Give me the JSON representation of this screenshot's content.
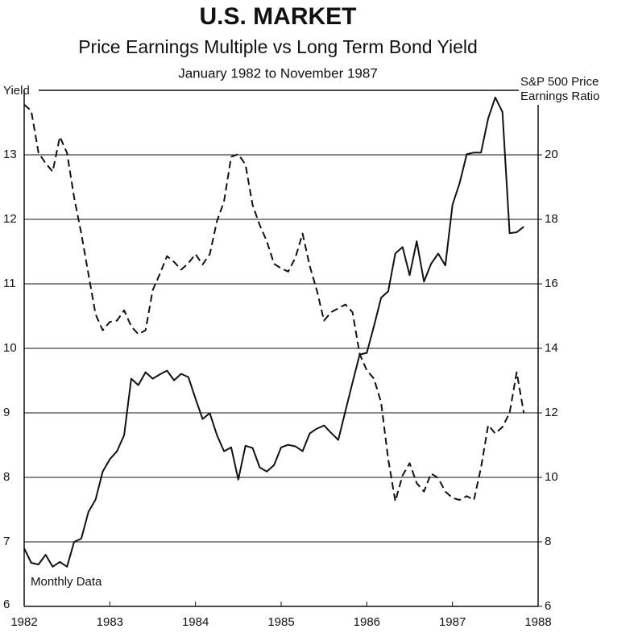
{
  "chart_data": {
    "type": "line",
    "title": "U.S. MARKET",
    "subtitle": "Price Earnings Multiple vs Long Term Bond Yield",
    "subtitle2": "January 1982 to November 1987",
    "ylabel": "Yield",
    "y2label": [
      "S&P 500 Price",
      "Earnings Ratio"
    ],
    "annotation": "Monthly Data",
    "x": [
      1982,
      1982.083,
      1982.167,
      1982.25,
      1982.333,
      1982.417,
      1982.5,
      1982.583,
      1982.667,
      1982.75,
      1982.833,
      1982.917,
      1983,
      1983.083,
      1983.167,
      1983.25,
      1983.333,
      1983.417,
      1983.5,
      1983.583,
      1983.667,
      1983.75,
      1983.833,
      1983.917,
      1984,
      1984.083,
      1984.167,
      1984.25,
      1984.333,
      1984.417,
      1984.5,
      1984.583,
      1984.667,
      1984.75,
      1984.833,
      1984.917,
      1985,
      1985.083,
      1985.167,
      1985.25,
      1985.333,
      1985.417,
      1985.5,
      1985.583,
      1985.667,
      1985.75,
      1985.833,
      1985.917,
      1986,
      1986.083,
      1986.167,
      1986.25,
      1986.333,
      1986.417,
      1986.5,
      1986.583,
      1986.667,
      1986.75,
      1986.833,
      1986.917,
      1987,
      1987.083,
      1987.167,
      1987.25,
      1987.333,
      1987.417,
      1987.5,
      1987.583,
      1987.667,
      1987.75,
      1987.833
    ],
    "series": [
      {
        "color": "#111111",
        "line_style": "dashed",
        "axis": "y",
        "values": [
          13.78,
          13.68,
          13.03,
          12.87,
          12.74,
          13.28,
          13.03,
          12.34,
          11.78,
          11.15,
          10.53,
          10.28,
          10.41,
          10.43,
          10.59,
          10.34,
          10.22,
          10.28,
          10.9,
          11.15,
          11.43,
          11.34,
          11.22,
          11.32,
          11.46,
          11.3,
          11.46,
          11.97,
          12.28,
          12.97,
          13.01,
          12.85,
          12.22,
          11.91,
          11.66,
          11.31,
          11.24,
          11.19,
          11.41,
          11.78,
          11.28,
          10.9,
          10.43,
          10.56,
          10.62,
          10.68,
          10.56,
          9.91,
          9.66,
          9.53,
          9.16,
          8.28,
          7.63,
          8.03,
          8.22,
          7.91,
          7.78,
          8.06,
          7.99,
          7.78,
          7.68,
          7.65,
          7.71,
          7.65,
          8.15,
          8.81,
          8.68,
          8.78,
          9.0,
          9.63,
          9.0
        ]
      },
      {
        "color": "#111111",
        "line_style": "solid",
        "axis": "y2",
        "values": [
          7.8,
          7.35,
          7.3,
          7.6,
          7.23,
          7.38,
          7.23,
          8.0,
          8.1,
          8.93,
          9.31,
          10.18,
          10.56,
          10.81,
          11.31,
          13.06,
          12.86,
          13.26,
          13.06,
          13.19,
          13.31,
          13.01,
          13.21,
          13.11,
          12.44,
          11.81,
          11.99,
          11.31,
          10.81,
          10.93,
          9.93,
          10.98,
          10.91,
          10.31,
          10.18,
          10.38,
          10.93,
          11.01,
          10.96,
          10.81,
          11.36,
          11.51,
          11.61,
          11.38,
          11.16,
          12.06,
          12.94,
          13.81,
          13.86,
          14.69,
          15.57,
          15.77,
          16.94,
          17.14,
          16.27,
          17.32,
          16.07,
          16.62,
          16.94,
          16.57,
          18.45,
          19.12,
          20.02,
          20.07,
          20.07,
          21.13,
          21.78,
          21.33,
          17.57,
          17.6,
          17.77
        ]
      }
    ],
    "xlim": [
      1982,
      1988
    ],
    "xticks": [
      1982,
      1983,
      1984,
      1985,
      1986,
      1987,
      1988
    ],
    "ylim": [
      6,
      14
    ],
    "yticks": [
      6,
      7,
      8,
      9,
      10,
      11,
      12,
      13
    ],
    "y2lim": [
      6,
      22
    ],
    "y2ticks": [
      6,
      8,
      10,
      12,
      14,
      16,
      18,
      20
    ],
    "grid": true
  }
}
